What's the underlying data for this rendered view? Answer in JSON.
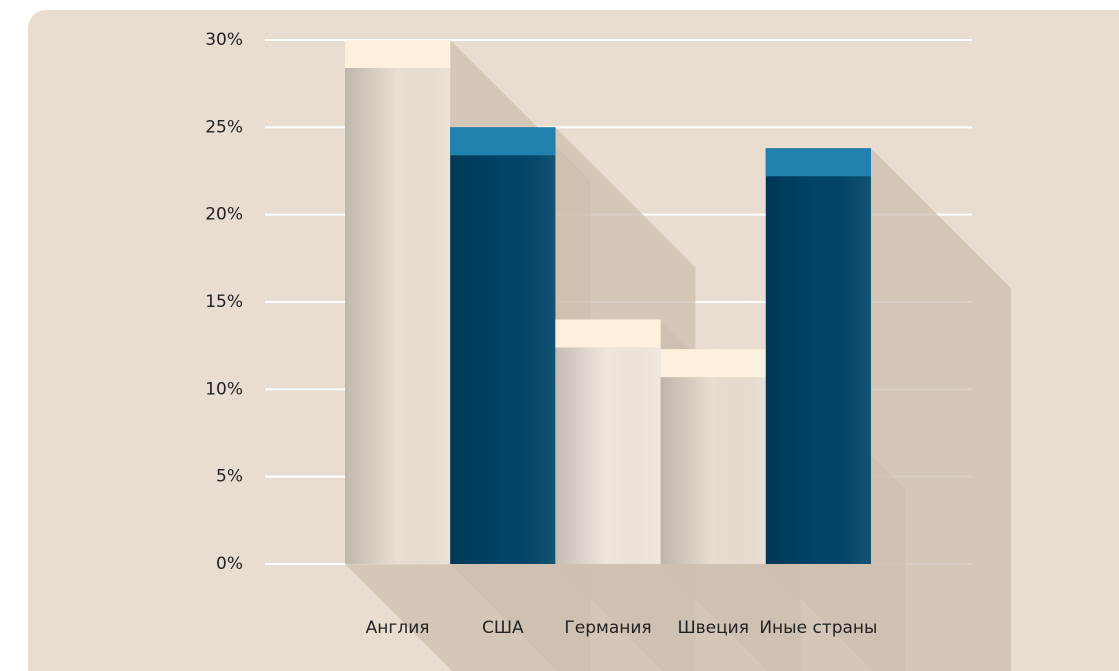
{
  "chart_data": {
    "type": "bar",
    "categories": [
      "Англия",
      "США",
      "Германия",
      "Швеция",
      "Иные страны"
    ],
    "values": [
      30,
      25,
      14,
      12.3,
      23.8
    ],
    "colors": [
      "#eadfd2",
      "#004468",
      "#f0e6dc",
      "#e9ddd0",
      "#004468"
    ],
    "cap_colors": [
      "#fdf0dc",
      "#2080ae",
      "#fdf0dc",
      "#fdf0dc",
      "#2080ae"
    ],
    "ylim": [
      0,
      30
    ],
    "yticks": [
      {
        "value": 0,
        "label": "0%"
      },
      {
        "value": 5,
        "label": "5%"
      },
      {
        "value": 10,
        "label": "10%"
      },
      {
        "value": 15,
        "label": "15%"
      },
      {
        "value": 20,
        "label": "20%"
      },
      {
        "value": 25,
        "label": "25%"
      },
      {
        "value": 30,
        "label": "30%"
      }
    ],
    "grid": true
  }
}
